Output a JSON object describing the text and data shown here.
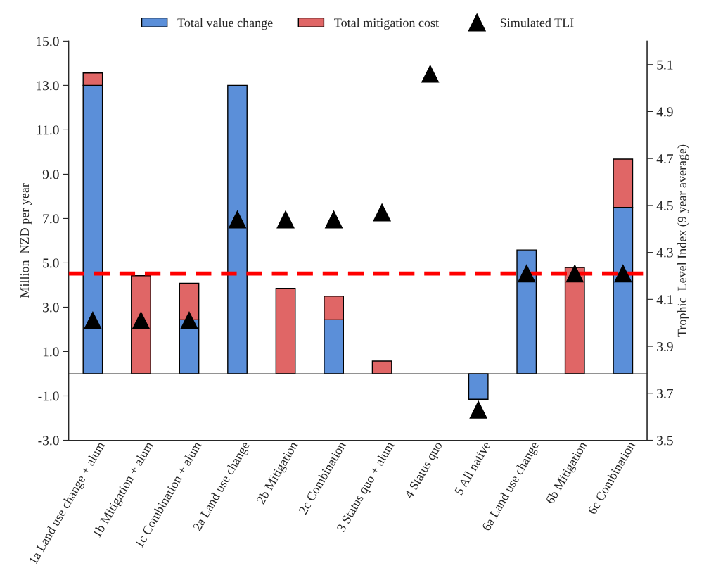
{
  "chart_data": {
    "type": "bar",
    "stacked": true,
    "ylabel": "Million  NZD per year",
    "y2label": "Trophic  Level Index (9 year average)",
    "categories": [
      "1a Land use change + alum",
      "1b Mitigation + alum",
      "1c Combination + alum",
      "2a Land use change",
      "2b Mitigation",
      "2c Combination",
      "3 Status quo + alum",
      "4 Status quo",
      "5 All native",
      "6a Land use change",
      "6b Mitigation",
      "6c Combination"
    ],
    "series": [
      {
        "name": "Total value change",
        "color": "#5b8fd9",
        "values": [
          13.0,
          null,
          2.43,
          13.0,
          null,
          2.43,
          null,
          null,
          -1.15,
          5.58,
          null,
          7.5
        ]
      },
      {
        "name": "Total mitigation cost",
        "color": "#e06666",
        "values": [
          0.56,
          4.42,
          1.65,
          null,
          3.85,
          1.07,
          0.57,
          null,
          null,
          null,
          4.79,
          2.18
        ]
      },
      {
        "name": "Simulated TLI",
        "type": "scatter",
        "axis": "y2",
        "color": "#000000",
        "marker": "triangle",
        "values": [
          4.01,
          4.01,
          4.01,
          4.44,
          4.44,
          4.44,
          4.47,
          5.06,
          3.63,
          4.21,
          4.21,
          4.21
        ]
      }
    ],
    "ylim": [
      -3.0,
      15.0
    ],
    "yticks": [
      {
        "value": -3,
        "label": "-3.0"
      },
      {
        "value": -1,
        "label": "-1.0"
      },
      {
        "value": 1,
        "label": "1.0"
      },
      {
        "value": 3,
        "label": "3.0"
      },
      {
        "value": 5,
        "label": "5.0"
      },
      {
        "value": 7,
        "label": "7.0"
      },
      {
        "value": 9,
        "label": "9.0"
      },
      {
        "value": 11,
        "label": "11.0"
      },
      {
        "value": 13,
        "label": "13.0"
      },
      {
        "value": 15,
        "label": "15.0"
      }
    ],
    "y2lim": [
      3.5,
      5.2
    ],
    "y2ticks": [
      3.5,
      3.7,
      3.9,
      4.1,
      4.3,
      4.5,
      4.7,
      4.9,
      5.1
    ],
    "ref_lines": [
      {
        "axis": "y2",
        "value": 4.21,
        "color": "#ff0000",
        "line_style": "dashed"
      }
    ],
    "legend": "top",
    "grid": false
  }
}
